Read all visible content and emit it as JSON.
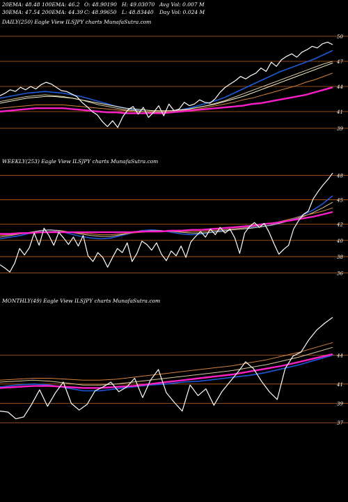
{
  "header": {
    "line1": [
      "20EMA: 48.48",
      "100EMA: 46.2",
      "O: 48.90190",
      "H: 49.03070",
      "Avg Vol: 0.007 M"
    ],
    "line2": [
      "30EMA: 47.54",
      "200EMA: 44.39",
      "C: 48.99650",
      "L: 48.83440",
      "Day Vol: 0.024  M"
    ]
  },
  "colors": {
    "background": "#000000",
    "level_line": "#c0601a",
    "price": "#ffffff",
    "ema_fast": "#1e5bd6",
    "ema_slow": "#ff1fc9",
    "ema_mid1": "#d8c8a0",
    "ema_mid2": "#f5efc8",
    "ema_mid3": "#d7823a"
  },
  "chart_data": [
    {
      "type": "line",
      "caption": "DAILY(250) Eagle  View  ILSJPY charts MunafaSutra.com",
      "yticks": [
        50,
        47,
        44,
        41,
        39
      ],
      "ylim": [
        38,
        51
      ],
      "price": [
        42.9,
        43.2,
        43.6,
        43.4,
        43.9,
        43.6,
        44.0,
        43.7,
        44.2,
        44.5,
        44.3,
        43.9,
        43.5,
        43.4,
        43.1,
        42.8,
        42.1,
        41.6,
        41.0,
        40.6,
        39.8,
        39.2,
        39.9,
        39.1,
        40.4,
        41.2,
        41.6,
        40.7,
        41.5,
        40.3,
        40.9,
        41.7,
        40.5,
        41.9,
        41.1,
        41.3,
        42.1,
        41.7,
        41.9,
        42.4,
        42.1,
        42.0,
        42.5,
        43.3,
        43.9,
        44.3,
        44.7,
        45.2,
        44.9,
        45.3,
        45.6,
        46.2,
        45.8,
        46.9,
        46.4,
        47.2,
        47.6,
        47.9,
        47.5,
        48.1,
        48.4,
        48.8,
        48.6,
        49.1,
        49.3,
        49.0
      ],
      "series": [
        {
          "key": "ema_fast",
          "values": [
            42.6,
            42.8,
            43.0,
            43.2,
            43.3,
            43.4,
            43.3,
            43.2,
            43.0,
            42.8,
            42.5,
            42.2,
            41.9,
            41.6,
            41.4,
            41.2,
            41.0,
            40.9,
            40.9,
            41.0,
            41.2,
            41.4,
            41.7,
            42.0,
            42.3,
            42.7,
            43.2,
            43.7,
            44.2,
            44.7,
            45.2,
            45.7,
            46.1,
            46.5,
            46.9,
            47.3,
            47.8,
            48.3
          ]
        },
        {
          "key": "ema_mid1",
          "values": [
            42.2,
            42.4,
            42.6,
            42.8,
            42.9,
            43.0,
            42.9,
            42.8,
            42.6,
            42.4,
            42.1,
            41.8,
            41.6,
            41.4,
            41.2,
            41.1,
            41.0,
            40.9,
            40.9,
            41.0,
            41.1,
            41.3,
            41.5,
            41.7,
            42.0,
            42.3,
            42.7,
            43.1,
            43.5,
            43.9,
            44.3,
            44.7,
            45.1,
            45.5,
            45.9,
            46.3,
            46.7,
            47.0
          ]
        },
        {
          "key": "ema_mid2",
          "values": [
            42.0,
            42.2,
            42.4,
            42.6,
            42.7,
            42.8,
            42.8,
            42.7,
            42.6,
            42.4,
            42.2,
            42.0,
            41.8,
            41.6,
            41.4,
            41.3,
            41.2,
            41.1,
            41.1,
            41.1,
            41.2,
            41.3,
            41.5,
            41.7,
            41.9,
            42.2,
            42.5,
            42.8,
            43.2,
            43.6,
            44.0,
            44.4,
            44.8,
            45.2,
            45.6,
            46.0,
            46.4,
            46.8
          ]
        },
        {
          "key": "ema_mid3",
          "values": [
            41.4,
            41.5,
            41.6,
            41.7,
            41.8,
            41.8,
            41.8,
            41.8,
            41.7,
            41.6,
            41.5,
            41.4,
            41.3,
            41.2,
            41.1,
            41.0,
            41.0,
            41.0,
            41.0,
            41.0,
            41.1,
            41.2,
            41.3,
            41.5,
            41.7,
            41.9,
            42.1,
            42.4,
            42.6,
            42.9,
            43.2,
            43.5,
            43.8,
            44.1,
            44.5,
            44.8,
            45.2,
            45.6
          ]
        },
        {
          "key": "ema_slow",
          "values": [
            41.0,
            41.1,
            41.2,
            41.3,
            41.4,
            41.4,
            41.4,
            41.4,
            41.3,
            41.2,
            41.1,
            41.0,
            40.9,
            40.9,
            40.8,
            40.8,
            40.8,
            40.8,
            40.8,
            40.9,
            41.0,
            41.1,
            41.2,
            41.3,
            41.4,
            41.5,
            41.6,
            41.7,
            41.9,
            42.0,
            42.2,
            42.4,
            42.6,
            42.8,
            43.0,
            43.3,
            43.6,
            43.9
          ]
        }
      ]
    },
    {
      "type": "line",
      "caption": "WEEKLY(253) Eagle  View  ILSJPY charts MunafaSutra.com",
      "yticks": [
        48,
        45,
        42,
        40,
        38,
        36
      ],
      "ylim": [
        35,
        49
      ],
      "price": [
        37.0,
        36.6,
        36.1,
        37.2,
        39.0,
        38.2,
        39.1,
        40.9,
        39.4,
        41.5,
        40.6,
        39.4,
        41.0,
        40.3,
        39.5,
        40.4,
        39.3,
        40.6,
        38.1,
        37.4,
        38.5,
        37.9,
        36.7,
        37.9,
        39.0,
        38.5,
        39.7,
        37.4,
        38.4,
        39.9,
        39.5,
        38.8,
        39.7,
        38.3,
        37.5,
        38.7,
        38.1,
        39.3,
        37.9,
        39.8,
        40.5,
        41.1,
        40.4,
        41.4,
        40.7,
        41.6,
        40.9,
        41.4,
        40.3,
        38.4,
        40.9,
        41.7,
        42.2,
        41.6,
        42.1,
        41.0,
        39.6,
        38.3,
        38.9,
        39.4,
        41.4,
        42.4,
        43.2,
        43.6,
        45.1,
        46.0,
        46.8,
        47.5,
        48.3
      ],
      "series": [
        {
          "key": "ema_fast",
          "values": [
            40.2,
            40.4,
            40.6,
            40.9,
            41.2,
            41.3,
            41.1,
            40.8,
            40.5,
            40.3,
            40.2,
            40.3,
            40.6,
            40.9,
            41.2,
            41.3,
            41.2,
            41.0,
            40.8,
            40.7,
            40.8,
            41.0,
            41.2,
            41.4,
            41.5,
            41.6,
            41.7,
            41.9,
            42.2,
            42.6,
            43.1,
            43.7,
            44.5,
            45.5
          ]
        },
        {
          "key": "ema_mid1",
          "values": [
            40.4,
            40.6,
            40.8,
            41.0,
            41.2,
            41.3,
            41.2,
            41.0,
            40.8,
            40.6,
            40.5,
            40.5,
            40.7,
            40.9,
            41.1,
            41.2,
            41.2,
            41.1,
            41.0,
            40.9,
            40.9,
            41.0,
            41.1,
            41.3,
            41.4,
            41.5,
            41.7,
            41.9,
            42.2,
            42.5,
            42.9,
            43.4,
            44.0,
            44.7
          ]
        },
        {
          "key": "ema_mid3",
          "values": [
            40.6,
            40.7,
            40.8,
            40.9,
            41.0,
            41.1,
            41.1,
            41.0,
            40.9,
            40.8,
            40.7,
            40.7,
            40.8,
            40.9,
            41.0,
            41.1,
            41.1,
            41.1,
            41.1,
            41.1,
            41.1,
            41.2,
            41.3,
            41.4,
            41.5,
            41.7,
            41.9,
            42.1,
            42.4,
            42.7,
            43.0,
            43.3,
            43.6,
            44.0
          ]
        },
        {
          "key": "ema_slow",
          "values": [
            40.8,
            40.8,
            40.9,
            40.9,
            41.0,
            41.0,
            41.0,
            41.0,
            41.0,
            41.0,
            41.0,
            41.0,
            41.0,
            41.0,
            41.1,
            41.1,
            41.1,
            41.2,
            41.2,
            41.3,
            41.3,
            41.4,
            41.5,
            41.6,
            41.7,
            41.8,
            42.0,
            42.1,
            42.3,
            42.5,
            42.7,
            42.9,
            43.2,
            43.5
          ]
        }
      ]
    },
    {
      "type": "line",
      "caption": "MONTHLY(49) Eagle  View  ILSJPY charts MunafaSutra.com",
      "yticks": [
        44,
        41,
        39,
        37
      ],
      "ylim": [
        35.5,
        49
      ],
      "price": [
        38.2,
        38.1,
        37.4,
        37.6,
        38.9,
        40.4,
        38.7,
        40.1,
        41.2,
        39.0,
        38.3,
        38.9,
        40.3,
        40.7,
        41.2,
        40.2,
        40.7,
        41.6,
        39.6,
        41.4,
        42.5,
        40.1,
        39.1,
        38.2,
        40.9,
        39.8,
        40.5,
        38.8,
        40.2,
        41.2,
        42.2,
        43.3,
        42.6,
        41.3,
        40.2,
        39.4,
        42.6,
        43.9,
        44.3,
        45.6,
        46.6,
        47.3,
        47.9
      ],
      "series": [
        {
          "key": "ema_fast",
          "values": [
            40.7,
            40.9,
            41.0,
            40.9,
            40.6,
            40.3,
            40.3,
            40.5,
            40.7,
            40.9,
            41.0,
            41.2,
            41.3,
            41.5,
            41.7,
            41.9,
            42.2,
            42.6,
            43.0,
            43.5,
            44.0
          ]
        },
        {
          "key": "ema_mid1",
          "values": [
            41.2,
            41.3,
            41.4,
            41.3,
            41.1,
            40.9,
            40.9,
            41.0,
            41.2,
            41.4,
            41.6,
            41.8,
            42.0,
            42.2,
            42.4,
            42.7,
            43.0,
            43.4,
            43.8,
            44.3,
            44.8
          ]
        },
        {
          "key": "ema_mid3",
          "values": [
            41.4,
            41.5,
            41.6,
            41.6,
            41.5,
            41.4,
            41.4,
            41.5,
            41.7,
            41.9,
            42.1,
            42.3,
            42.5,
            42.7,
            42.9,
            43.2,
            43.5,
            43.9,
            44.3,
            44.8,
            45.3
          ]
        },
        {
          "key": "ema_slow",
          "values": [
            40.6,
            40.7,
            40.8,
            40.8,
            40.7,
            40.6,
            40.6,
            40.7,
            40.8,
            41.0,
            41.2,
            41.4,
            41.6,
            41.8,
            42.0,
            42.3,
            42.6,
            42.9,
            43.3,
            43.7,
            44.1
          ]
        }
      ]
    }
  ]
}
